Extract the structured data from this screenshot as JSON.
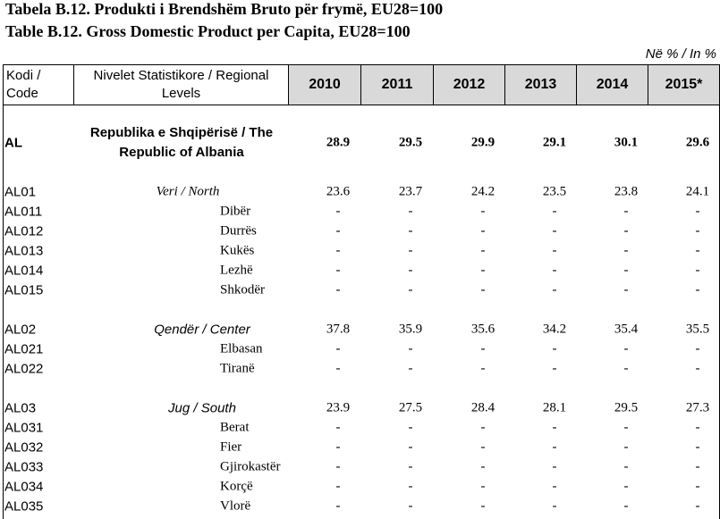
{
  "title_sq": "Tabela B.12. Produkti i Brendshëm Bruto për frymë, EU28=100",
  "title_en": "Table B.12. Gross Domestic Product per Capita, EU28=100",
  "unit": "Në % / In %",
  "header": {
    "code": "Kodi / Code",
    "level": "Nivelet Statistikore / Regional Levels",
    "years": [
      "2010",
      "2011",
      "2012",
      "2013",
      "2014",
      "2015*"
    ]
  },
  "country": {
    "code": "AL",
    "name": "Republika e Shqipërisë / The Republic of Albania",
    "values": [
      28.9,
      29.5,
      29.9,
      29.1,
      30.1,
      29.6
    ]
  },
  "regions": [
    {
      "code": "AL01",
      "name": "Veri / North",
      "values": [
        23.6,
        23.7,
        24.2,
        23.5,
        23.8,
        24.1
      ],
      "prefectures": [
        {
          "code": "AL011",
          "name": "Dibër",
          "values": [
            "-",
            "-",
            "-",
            "-",
            "-",
            "-"
          ]
        },
        {
          "code": "AL012",
          "name": "Durrës",
          "values": [
            "-",
            "-",
            "-",
            "-",
            "-",
            "-"
          ]
        },
        {
          "code": "AL013",
          "name": "Kukës",
          "values": [
            "-",
            "-",
            "-",
            "-",
            "-",
            "-"
          ]
        },
        {
          "code": "AL014",
          "name": "Lezhë",
          "values": [
            "-",
            "-",
            "-",
            "-",
            "-",
            "-"
          ]
        },
        {
          "code": "AL015",
          "name": "Shkodër",
          "values": [
            "-",
            "-",
            "-",
            "-",
            "-",
            "-"
          ]
        }
      ]
    },
    {
      "code": "AL02",
      "name": "Qendër / Center",
      "values": [
        37.8,
        35.9,
        35.6,
        34.2,
        35.4,
        35.5
      ],
      "prefectures": [
        {
          "code": "AL021",
          "name": "Elbasan",
          "values": [
            "-",
            "-",
            "-",
            "-",
            "-",
            "-"
          ]
        },
        {
          "code": "AL022",
          "name": "Tiranë",
          "values": [
            "-",
            "-",
            "-",
            "-",
            "-",
            "-"
          ]
        }
      ]
    },
    {
      "code": "AL03",
      "name": "Jug / South",
      "values": [
        23.9,
        27.5,
        28.4,
        28.1,
        29.5,
        27.3
      ],
      "prefectures": [
        {
          "code": "AL031",
          "name": "Berat",
          "values": [
            "-",
            "-",
            "-",
            "-",
            "-",
            "-"
          ]
        },
        {
          "code": "AL032",
          "name": "Fier",
          "values": [
            "-",
            "-",
            "-",
            "-",
            "-",
            "-"
          ]
        },
        {
          "code": "AL033",
          "name": "Gjirokastër",
          "values": [
            "-",
            "-",
            "-",
            "-",
            "-",
            "-"
          ]
        },
        {
          "code": "AL034",
          "name": "Korçë",
          "values": [
            "-",
            "-",
            "-",
            "-",
            "-",
            "-"
          ]
        },
        {
          "code": "AL035",
          "name": "Vlorë",
          "values": [
            "-",
            "-",
            "-",
            "-",
            "-",
            "-"
          ]
        }
      ]
    }
  ]
}
